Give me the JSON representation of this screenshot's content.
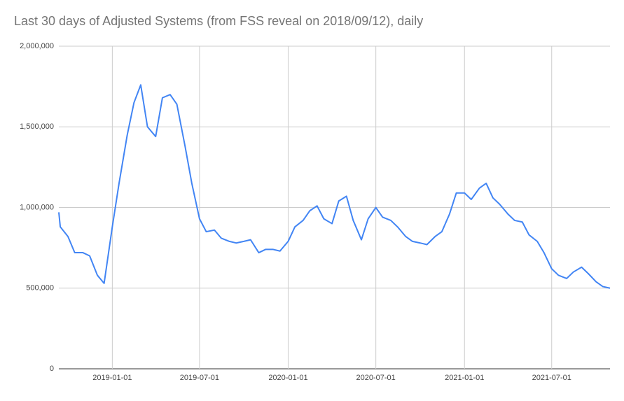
{
  "chart_data": {
    "type": "line",
    "title": "Last 30 days of Adjusted Systems (from FSS reveal on 2018/09/12), daily",
    "x": [
      "2018-09-12",
      "2018-09-15",
      "2018-10-01",
      "2018-10-15",
      "2018-11-01",
      "2018-11-15",
      "2018-12-01",
      "2018-12-15",
      "2019-01-01",
      "2019-01-15",
      "2019-02-01",
      "2019-02-15",
      "2019-03-01",
      "2019-03-15",
      "2019-04-01",
      "2019-04-15",
      "2019-05-01",
      "2019-05-15",
      "2019-06-01",
      "2019-06-15",
      "2019-07-01",
      "2019-07-15",
      "2019-08-01",
      "2019-08-15",
      "2019-09-01",
      "2019-09-15",
      "2019-10-01",
      "2019-10-15",
      "2019-11-01",
      "2019-11-15",
      "2019-12-01",
      "2019-12-15",
      "2020-01-01",
      "2020-01-15",
      "2020-02-01",
      "2020-02-15",
      "2020-03-01",
      "2020-03-15",
      "2020-04-01",
      "2020-04-15",
      "2020-05-01",
      "2020-05-15",
      "2020-06-01",
      "2020-06-15",
      "2020-07-01",
      "2020-07-15",
      "2020-08-01",
      "2020-08-15",
      "2020-09-01",
      "2020-09-15",
      "2020-10-01",
      "2020-10-15",
      "2020-11-01",
      "2020-11-15",
      "2020-12-01",
      "2020-12-15",
      "2021-01-01",
      "2021-01-15",
      "2021-02-01",
      "2021-02-15",
      "2021-03-01",
      "2021-03-15",
      "2021-04-01",
      "2021-04-15",
      "2021-05-01",
      "2021-05-15",
      "2021-06-01",
      "2021-06-15",
      "2021-07-01",
      "2021-07-15",
      "2021-08-01",
      "2021-08-15",
      "2021-09-01",
      "2021-09-15",
      "2021-10-01",
      "2021-10-15",
      "2021-10-30"
    ],
    "series": [
      {
        "name": "Adjusted Systems",
        "color": "#4285f4",
        "values": [
          970000,
          880000,
          820000,
          720000,
          720000,
          700000,
          580000,
          530000,
          880000,
          1150000,
          1450000,
          1650000,
          1760000,
          1500000,
          1440000,
          1680000,
          1700000,
          1640000,
          1380000,
          1150000,
          930000,
          850000,
          860000,
          810000,
          790000,
          780000,
          790000,
          800000,
          720000,
          740000,
          740000,
          730000,
          790000,
          880000,
          920000,
          980000,
          1010000,
          930000,
          900000,
          1040000,
          1070000,
          920000,
          800000,
          930000,
          1000000,
          940000,
          920000,
          880000,
          820000,
          790000,
          780000,
          770000,
          820000,
          850000,
          960000,
          1090000,
          1090000,
          1050000,
          1120000,
          1150000,
          1060000,
          1020000,
          960000,
          920000,
          910000,
          830000,
          790000,
          720000,
          620000,
          580000,
          560000,
          600000,
          630000,
          590000,
          540000,
          510000,
          500000
        ]
      }
    ],
    "xlim": [
      "2018-09-12",
      "2021-10-30"
    ],
    "xticks": [
      "2019-01-01",
      "2019-07-01",
      "2020-01-01",
      "2020-07-01",
      "2021-01-01",
      "2021-07-01"
    ],
    "ylim": [
      0,
      2000000
    ],
    "yticks": [
      0,
      {
        "value": 500000,
        "label": "500,000"
      },
      {
        "value": 1000000,
        "label": "1,000,000"
      },
      {
        "value": 1500000,
        "label": "1,500,000"
      },
      {
        "value": 2000000,
        "label": "2,000,000"
      }
    ],
    "grid": true
  }
}
